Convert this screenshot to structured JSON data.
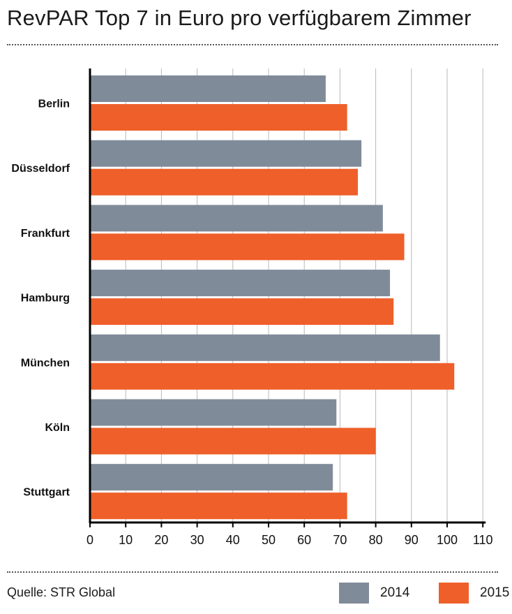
{
  "page": {
    "title": "RevPAR Top 7 in Euro pro verfügbarem Zimmer",
    "source": "Quelle: STR Global"
  },
  "chart_data": {
    "type": "bar",
    "orientation": "horizontal",
    "title": "RevPAR Top 7 in Euro pro verfügbarem Zimmer",
    "categories": [
      "Berlin",
      "Düsseldorf",
      "Frankfurt",
      "Hamburg",
      "München",
      "Köln",
      "Stuttgart"
    ],
    "series": [
      {
        "name": "2014",
        "color": "#808b99",
        "values": [
          66,
          76,
          82,
          84,
          98,
          69,
          68
        ]
      },
      {
        "name": "2015",
        "color": "#ef5f2a",
        "values": [
          72,
          75,
          88,
          85,
          102,
          80,
          72
        ]
      }
    ],
    "xlim": [
      0,
      110
    ],
    "xticks": [
      0,
      10,
      20,
      30,
      40,
      50,
      60,
      70,
      80,
      90,
      100,
      110
    ],
    "grid": true,
    "legend": "bottom-right"
  }
}
